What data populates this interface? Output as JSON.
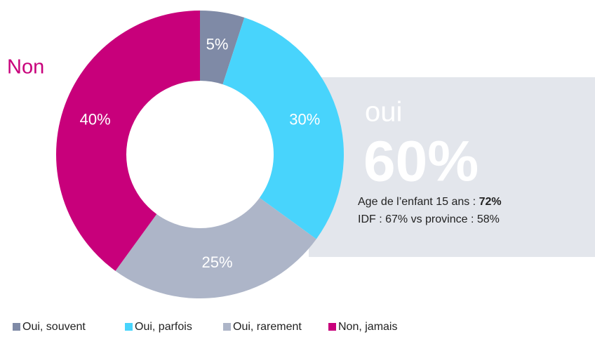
{
  "chart_data": {
    "type": "donut",
    "categories": [
      "Oui, souvent",
      "Oui, parfois",
      "Oui, rarement",
      "Non, jamais"
    ],
    "values": [
      5,
      30,
      25,
      40
    ],
    "value_labels": [
      "5%",
      "30%",
      "25%",
      "40%"
    ],
    "colors": [
      "#7f8aa6",
      "#48d4fc",
      "#adb5c8",
      "#c8007b"
    ],
    "legend": "bottom",
    "annotations": {
      "non": "Non",
      "oui": "oui",
      "total": "60%",
      "age_text": "Age de l’enfant 15 ans : ",
      "age_value": "72%",
      "region": "IDF : 67% vs province : 58%"
    }
  }
}
